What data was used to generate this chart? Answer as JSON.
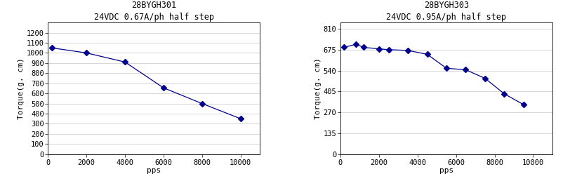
{
  "chart1": {
    "title": "28BYGH301",
    "subtitle": "24VDC 0.67A/ph half step",
    "x": [
      200,
      2000,
      4000,
      6000,
      8000,
      10000
    ],
    "y": [
      1050,
      1000,
      910,
      655,
      500,
      350
    ],
    "xlim": [
      0,
      11000
    ],
    "ylim": [
      0,
      1300
    ],
    "yticks": [
      0,
      100,
      200,
      300,
      400,
      500,
      600,
      700,
      800,
      900,
      1000,
      1100,
      1200
    ],
    "xticks": [
      0,
      2000,
      4000,
      6000,
      8000,
      10000
    ],
    "xlabel": "pps",
    "ylabel": "Torque(g. cm)"
  },
  "chart2": {
    "title": "28BYGH303",
    "subtitle": "24VDC 0.95A/ph half step",
    "x": [
      200,
      800,
      1200,
      2000,
      2500,
      3500,
      4500,
      5500,
      6500,
      7500,
      8500,
      9500
    ],
    "y": [
      690,
      710,
      690,
      680,
      675,
      670,
      645,
      555,
      545,
      490,
      390,
      320
    ],
    "xlim": [
      0,
      11000
    ],
    "ylim": [
      0,
      850
    ],
    "yticks": [
      0,
      135,
      270,
      405,
      540,
      675,
      810
    ],
    "xticks": [
      0,
      2000,
      4000,
      6000,
      8000,
      10000
    ],
    "xlabel": "pps",
    "ylabel": "Torque(g. cm)"
  },
  "line_color": "#00008B",
  "marker": "D",
  "markersize": 4,
  "bg_color": "#ffffff",
  "grid_color": "#c8c8c8",
  "title_fontsize": 8.5,
  "label_fontsize": 8,
  "tick_fontsize": 7.5,
  "figwidth": 8.03,
  "figheight": 2.68,
  "dpi": 100
}
